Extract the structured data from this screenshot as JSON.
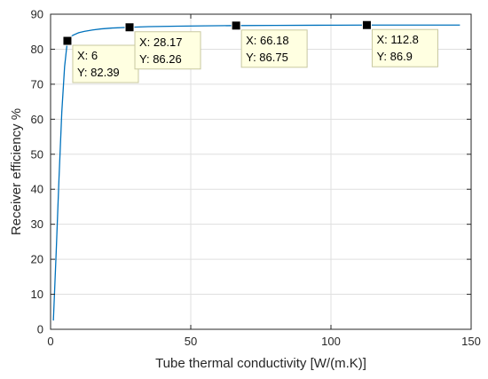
{
  "chart_data": {
    "type": "line",
    "xlabel": "Tube thermal conductivity [W/(m.K)]",
    "ylabel": "Receiver efficiency %",
    "xlim": [
      0,
      150
    ],
    "ylim": [
      0,
      90
    ],
    "xticks": [
      0,
      50,
      100,
      150
    ],
    "yticks": [
      0,
      10,
      20,
      30,
      40,
      50,
      60,
      70,
      80,
      90
    ],
    "grid": true,
    "series": [
      {
        "color": "#0072BD",
        "x": [
          1,
          2,
          3,
          4,
          5,
          6,
          7,
          8,
          10,
          12,
          15,
          18,
          22,
          28.17,
          35,
          45,
          55,
          66.18,
          80,
          95,
          112.8,
          130,
          146
        ],
        "y": [
          2.5,
          22,
          43,
          62,
          75,
          82.39,
          83.4,
          84.0,
          84.7,
          85.1,
          85.5,
          85.8,
          86.05,
          86.26,
          86.45,
          86.58,
          86.68,
          86.75,
          86.8,
          86.85,
          86.9,
          86.9,
          86.9
        ]
      }
    ],
    "datatips": [
      {
        "x": 6,
        "y": 82.39,
        "x_text": "X: 6",
        "y_text": "Y: 82.39"
      },
      {
        "x": 28.17,
        "y": 86.26,
        "x_text": "X: 28.17",
        "y_text": "Y: 86.26"
      },
      {
        "x": 66.18,
        "y": 86.75,
        "x_text": "X: 66.18",
        "y_text": "Y: 86.75"
      },
      {
        "x": 112.8,
        "y": 86.9,
        "x_text": "X: 112.8",
        "y_text": "Y: 86.9"
      }
    ],
    "colors": {
      "axis": "#262626",
      "grid": "#dfdfdf",
      "datatip_bg": "#ffffe1",
      "datatip_border": "#c8c8a0",
      "marker": "#000000"
    }
  }
}
